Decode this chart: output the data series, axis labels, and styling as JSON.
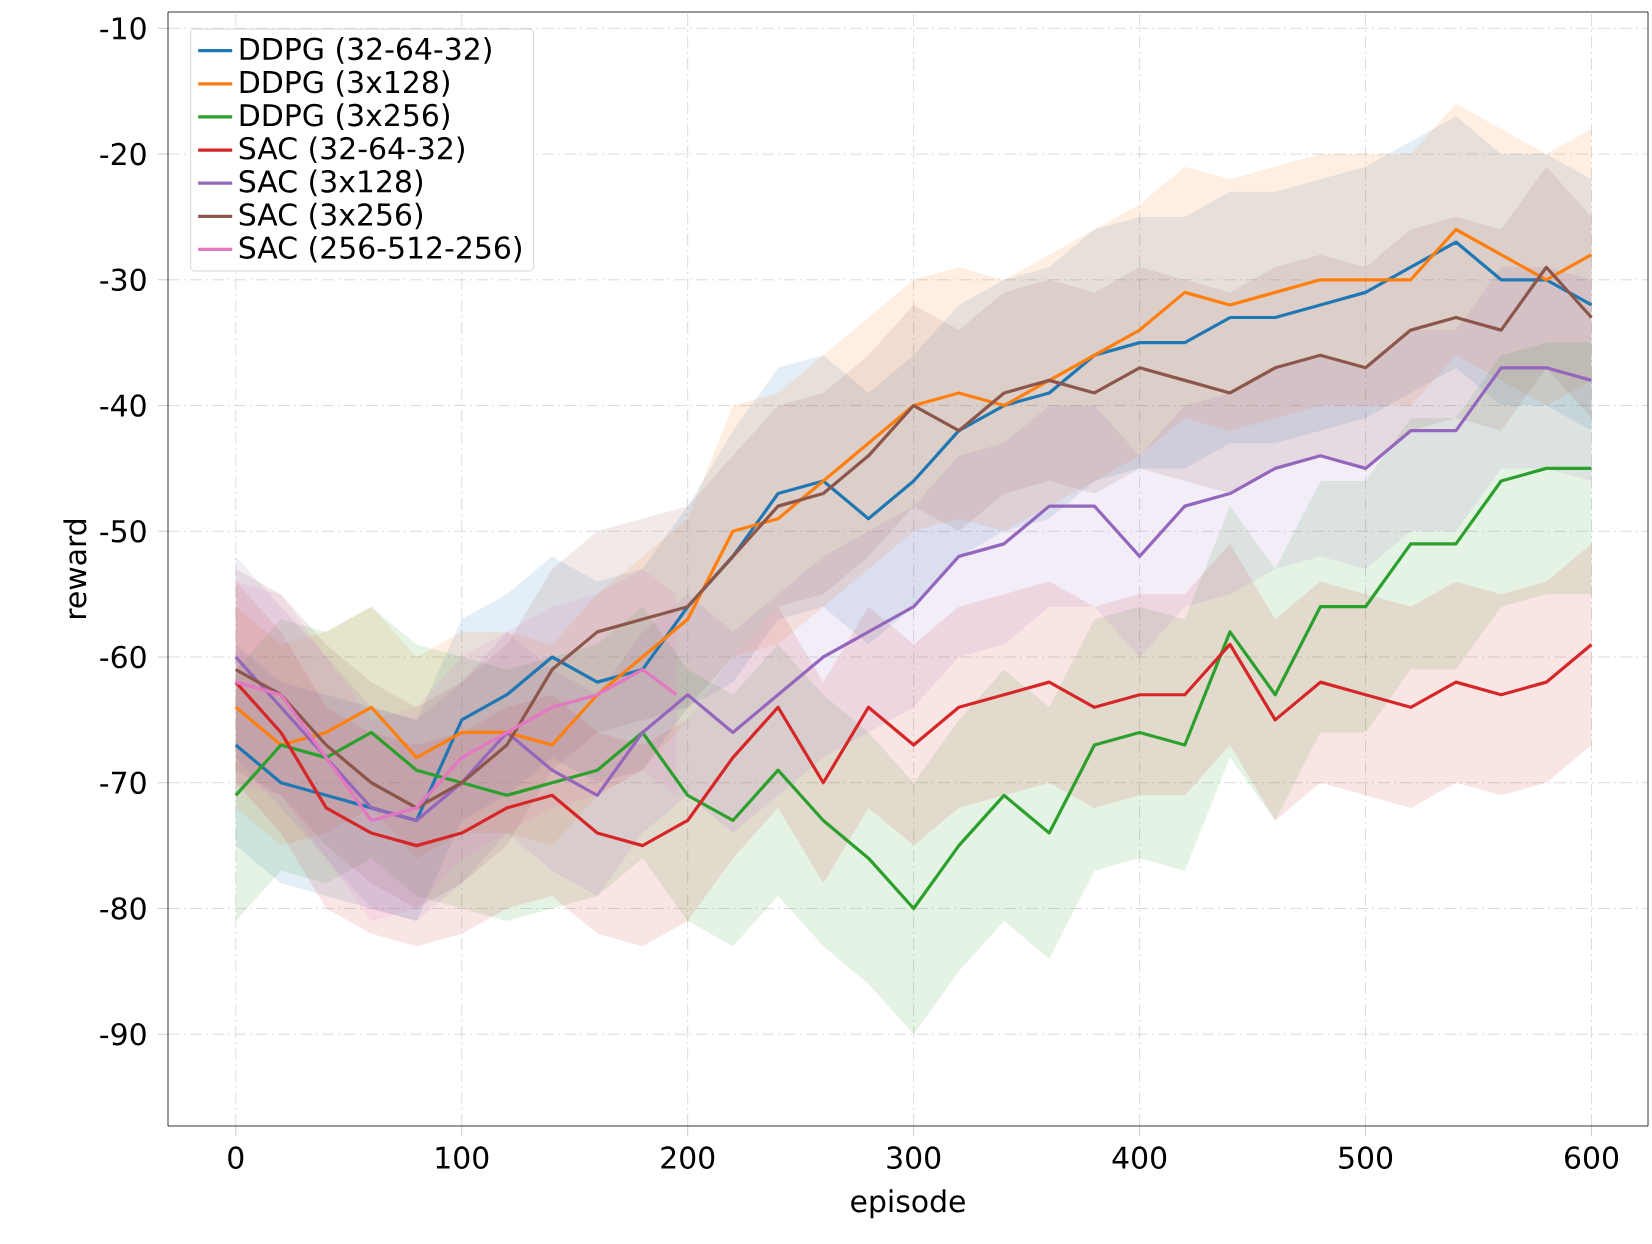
{
  "chart_data": {
    "type": "line",
    "xlabel": "episode",
    "ylabel": "reward",
    "x": [
      0,
      20,
      40,
      60,
      80,
      100,
      120,
      140,
      160,
      180,
      200,
      220,
      240,
      260,
      280,
      300,
      320,
      340,
      360,
      380,
      400,
      420,
      440,
      460,
      480,
      500,
      520,
      540,
      560,
      580,
      600
    ],
    "xlim": [
      -30,
      625
    ],
    "ylim": [
      -97.3,
      -8.7
    ],
    "xticks": [
      0,
      100,
      200,
      300,
      400,
      500,
      600
    ],
    "yticks": [
      -90,
      -80,
      -70,
      -60,
      -50,
      -40,
      -30,
      -20,
      -10
    ],
    "grid": true,
    "legend": "top left",
    "line_style": "solid",
    "series": [
      {
        "name": "DDPG (32-64-32)",
        "color": "#1f77b4",
        "values": [
          -67,
          -70,
          -71,
          -72,
          -73,
          -65,
          -63,
          -60,
          -62,
          -61,
          -56,
          -52,
          -47,
          -46,
          -49,
          -46,
          -42,
          -40,
          -39,
          -36,
          -35,
          -35,
          -33,
          -33,
          -32,
          -31,
          -29,
          -27,
          -30,
          -30,
          -32
        ],
        "lower": [
          -75,
          -78,
          -79,
          -80,
          -81,
          -73,
          -71,
          -68,
          -70,
          -69,
          -64,
          -62,
          -57,
          -56,
          -59,
          -56,
          -52,
          -50,
          -49,
          -46,
          -45,
          -45,
          -43,
          -43,
          -42,
          -41,
          -39,
          -37,
          -40,
          -40,
          -42
        ],
        "upper": [
          -59,
          -62,
          -63,
          -64,
          -65,
          -57,
          -55,
          -52,
          -54,
          -53,
          -48,
          -42,
          -37,
          -36,
          -39,
          -36,
          -32,
          -30,
          -29,
          -26,
          -25,
          -25,
          -23,
          -23,
          -22,
          -21,
          -19,
          -17,
          -20,
          -20,
          -22
        ]
      },
      {
        "name": "DDPG (3x128)",
        "color": "#ff7f0e",
        "values": [
          -64,
          -67,
          -66,
          -64,
          -68,
          -66,
          -66,
          -67,
          -63,
          -60,
          -57,
          -50,
          -49,
          -46,
          -43,
          -40,
          -39,
          -40,
          -38,
          -36,
          -34,
          -31,
          -32,
          -31,
          -30,
          -30,
          -30,
          -26,
          -28,
          -30,
          -28
        ],
        "lower": [
          -72,
          -75,
          -74,
          -72,
          -76,
          -74,
          -74,
          -75,
          -71,
          -69,
          -65,
          -60,
          -59,
          -56,
          -53,
          -50,
          -49,
          -50,
          -48,
          -46,
          -44,
          -41,
          -42,
          -41,
          -40,
          -40,
          -40,
          -36,
          -38,
          -40,
          -38
        ],
        "upper": [
          -56,
          -59,
          -58,
          -56,
          -60,
          -58,
          -58,
          -59,
          -55,
          -52,
          -49,
          -40,
          -39,
          -36,
          -33,
          -30,
          -29,
          -30,
          -28,
          -26,
          -24,
          -21,
          -22,
          -21,
          -20,
          -20,
          -20,
          -16,
          -18,
          -20,
          -18
        ]
      },
      {
        "name": "DDPG (3x256)",
        "color": "#2ca02c",
        "values": [
          -71,
          -67,
          -68,
          -66,
          -69,
          -70,
          -71,
          -70,
          -69,
          -66,
          -71,
          -73,
          -69,
          -73,
          -76,
          -80,
          -75,
          -71,
          -74,
          -67,
          -66,
          -67,
          -58,
          -63,
          -56,
          -56,
          -51,
          -51,
          -46,
          -45,
          -45
        ],
        "lower": [
          -81,
          -77,
          -78,
          -76,
          -79,
          -80,
          -81,
          -80,
          -79,
          -76,
          -81,
          -83,
          -79,
          -83,
          -86,
          -90,
          -85,
          -81,
          -84,
          -77,
          -76,
          -77,
          -68,
          -73,
          -66,
          -66,
          -61,
          -61,
          -56,
          -55,
          -55
        ],
        "upper": [
          -61,
          -57,
          -58,
          -56,
          -59,
          -60,
          -61,
          -60,
          -59,
          -56,
          -61,
          -63,
          -59,
          -63,
          -66,
          -70,
          -65,
          -61,
          -64,
          -57,
          -56,
          -57,
          -48,
          -53,
          -46,
          -46,
          -41,
          -41,
          -36,
          -35,
          -35
        ]
      },
      {
        "name": "SAC (32-64-32)",
        "color": "#d62728",
        "values": [
          -62,
          -66,
          -72,
          -74,
          -75,
          -74,
          -72,
          -71,
          -74,
          -75,
          -73,
          -68,
          -64,
          -70,
          -64,
          -67,
          -64,
          -63,
          -62,
          -64,
          -63,
          -63,
          -59,
          -65,
          -62,
          -63,
          -64,
          -62,
          -63,
          -62,
          -59
        ],
        "lower": [
          -70,
          -74,
          -80,
          -82,
          -83,
          -82,
          -80,
          -79,
          -82,
          -83,
          -81,
          -76,
          -72,
          -78,
          -72,
          -75,
          -72,
          -71,
          -70,
          -72,
          -71,
          -71,
          -67,
          -73,
          -70,
          -71,
          -72,
          -70,
          -71,
          -70,
          -67
        ],
        "upper": [
          -54,
          -58,
          -64,
          -66,
          -67,
          -66,
          -64,
          -63,
          -66,
          -67,
          -65,
          -60,
          -56,
          -62,
          -56,
          -59,
          -56,
          -55,
          -54,
          -56,
          -55,
          -55,
          -51,
          -57,
          -54,
          -55,
          -56,
          -54,
          -55,
          -54,
          -51
        ]
      },
      {
        "name": "SAC (3x128)",
        "color": "#9467bd",
        "values": [
          -60,
          -64,
          -68,
          -72,
          -73,
          -70,
          -66,
          -69,
          -71,
          -66,
          -63,
          -66,
          -63,
          -60,
          -58,
          -56,
          -52,
          -51,
          -48,
          -48,
          -52,
          -48,
          -47,
          -45,
          -44,
          -45,
          -42,
          -42,
          -37,
          -37,
          -38
        ],
        "lower": [
          -68,
          -72,
          -76,
          -80,
          -81,
          -78,
          -74,
          -77,
          -79,
          -74,
          -71,
          -74,
          -71,
          -68,
          -66,
          -64,
          -60,
          -59,
          -56,
          -56,
          -60,
          -56,
          -55,
          -53,
          -52,
          -53,
          -50,
          -50,
          -45,
          -45,
          -46
        ],
        "upper": [
          -52,
          -56,
          -60,
          -64,
          -65,
          -62,
          -58,
          -61,
          -63,
          -58,
          -55,
          -58,
          -55,
          -52,
          -50,
          -48,
          -44,
          -43,
          -40,
          -40,
          -44,
          -40,
          -39,
          -37,
          -36,
          -37,
          -34,
          -34,
          -29,
          -29,
          -30
        ]
      },
      {
        "name": "SAC (3x256)",
        "color": "#8c564b",
        "values": [
          -61,
          -63,
          -67,
          -70,
          -72,
          -70,
          -67,
          -61,
          -58,
          -57,
          -56,
          -52,
          -48,
          -47,
          -44,
          -40,
          -42,
          -39,
          -38,
          -39,
          -37,
          -38,
          -39,
          -37,
          -36,
          -37,
          -34,
          -33,
          -34,
          -29,
          -33
        ],
        "lower": [
          -69,
          -71,
          -75,
          -78,
          -80,
          -78,
          -75,
          -69,
          -66,
          -65,
          -64,
          -60,
          -56,
          -55,
          -52,
          -48,
          -50,
          -47,
          -46,
          -47,
          -45,
          -46,
          -47,
          -45,
          -44,
          -45,
          -42,
          -41,
          -42,
          -37,
          -41
        ],
        "upper": [
          -53,
          -55,
          -59,
          -62,
          -64,
          -62,
          -59,
          -53,
          -50,
          -49,
          -48,
          -44,
          -40,
          -39,
          -36,
          -32,
          -34,
          -31,
          -30,
          -31,
          -29,
          -30,
          -31,
          -29,
          -28,
          -29,
          -26,
          -25,
          -26,
          -21,
          -25
        ]
      },
      {
        "name": "SAC (256-512-256)",
        "color": "#e377c2",
        "x": [
          0,
          20,
          40,
          60,
          80,
          100,
          120,
          140,
          160,
          180,
          195
        ],
        "values": [
          -62,
          -63,
          -68,
          -73,
          -72,
          -68,
          -66,
          -64,
          -63,
          -61,
          -63
        ],
        "lower": [
          -70,
          -71,
          -76,
          -81,
          -80,
          -76,
          -74,
          -72,
          -71,
          -69,
          -71
        ],
        "upper": [
          -54,
          -55,
          -60,
          -65,
          -64,
          -60,
          -58,
          -56,
          -55,
          -53,
          -55
        ]
      }
    ]
  }
}
